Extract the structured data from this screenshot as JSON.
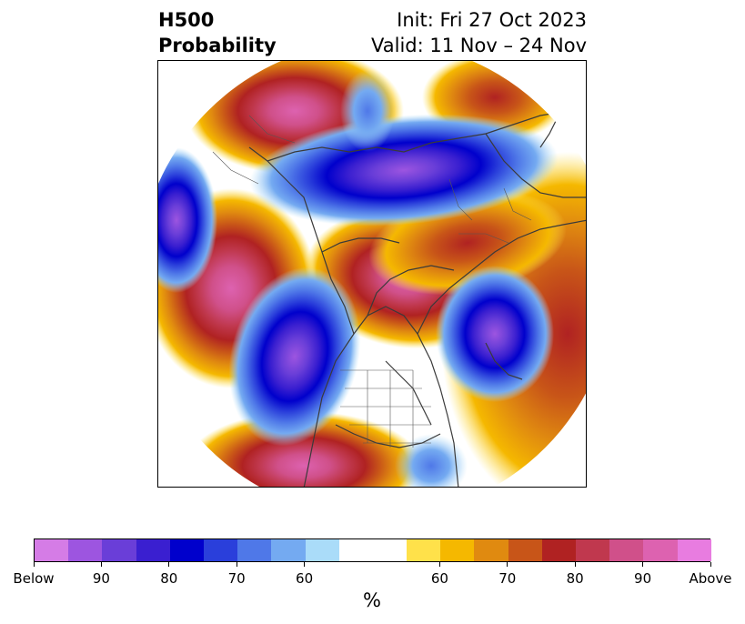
{
  "title": {
    "variable": "H500",
    "kind": "Probability",
    "init": "Init: Fri 27 Oct 2023",
    "valid": "Valid: 11 Nov – 24 Nov"
  },
  "colorbar": {
    "unit": "%",
    "colors": [
      "#d57ce6",
      "#9d55e0",
      "#6a3ed8",
      "#3a1fd0",
      "#0000cc",
      "#2a3fdb",
      "#4f78e8",
      "#74aaf1",
      "#aadcf9",
      "#ffffff",
      "#ffe14a",
      "#f5b800",
      "#e08a10",
      "#c85518",
      "#b02222",
      "#c0384e",
      "#d0508a",
      "#dd62b0",
      "#e87ce0"
    ],
    "labels": [
      "Below",
      "90",
      "80",
      "70",
      "60",
      "60",
      "70",
      "80",
      "90",
      "Above"
    ]
  }
}
